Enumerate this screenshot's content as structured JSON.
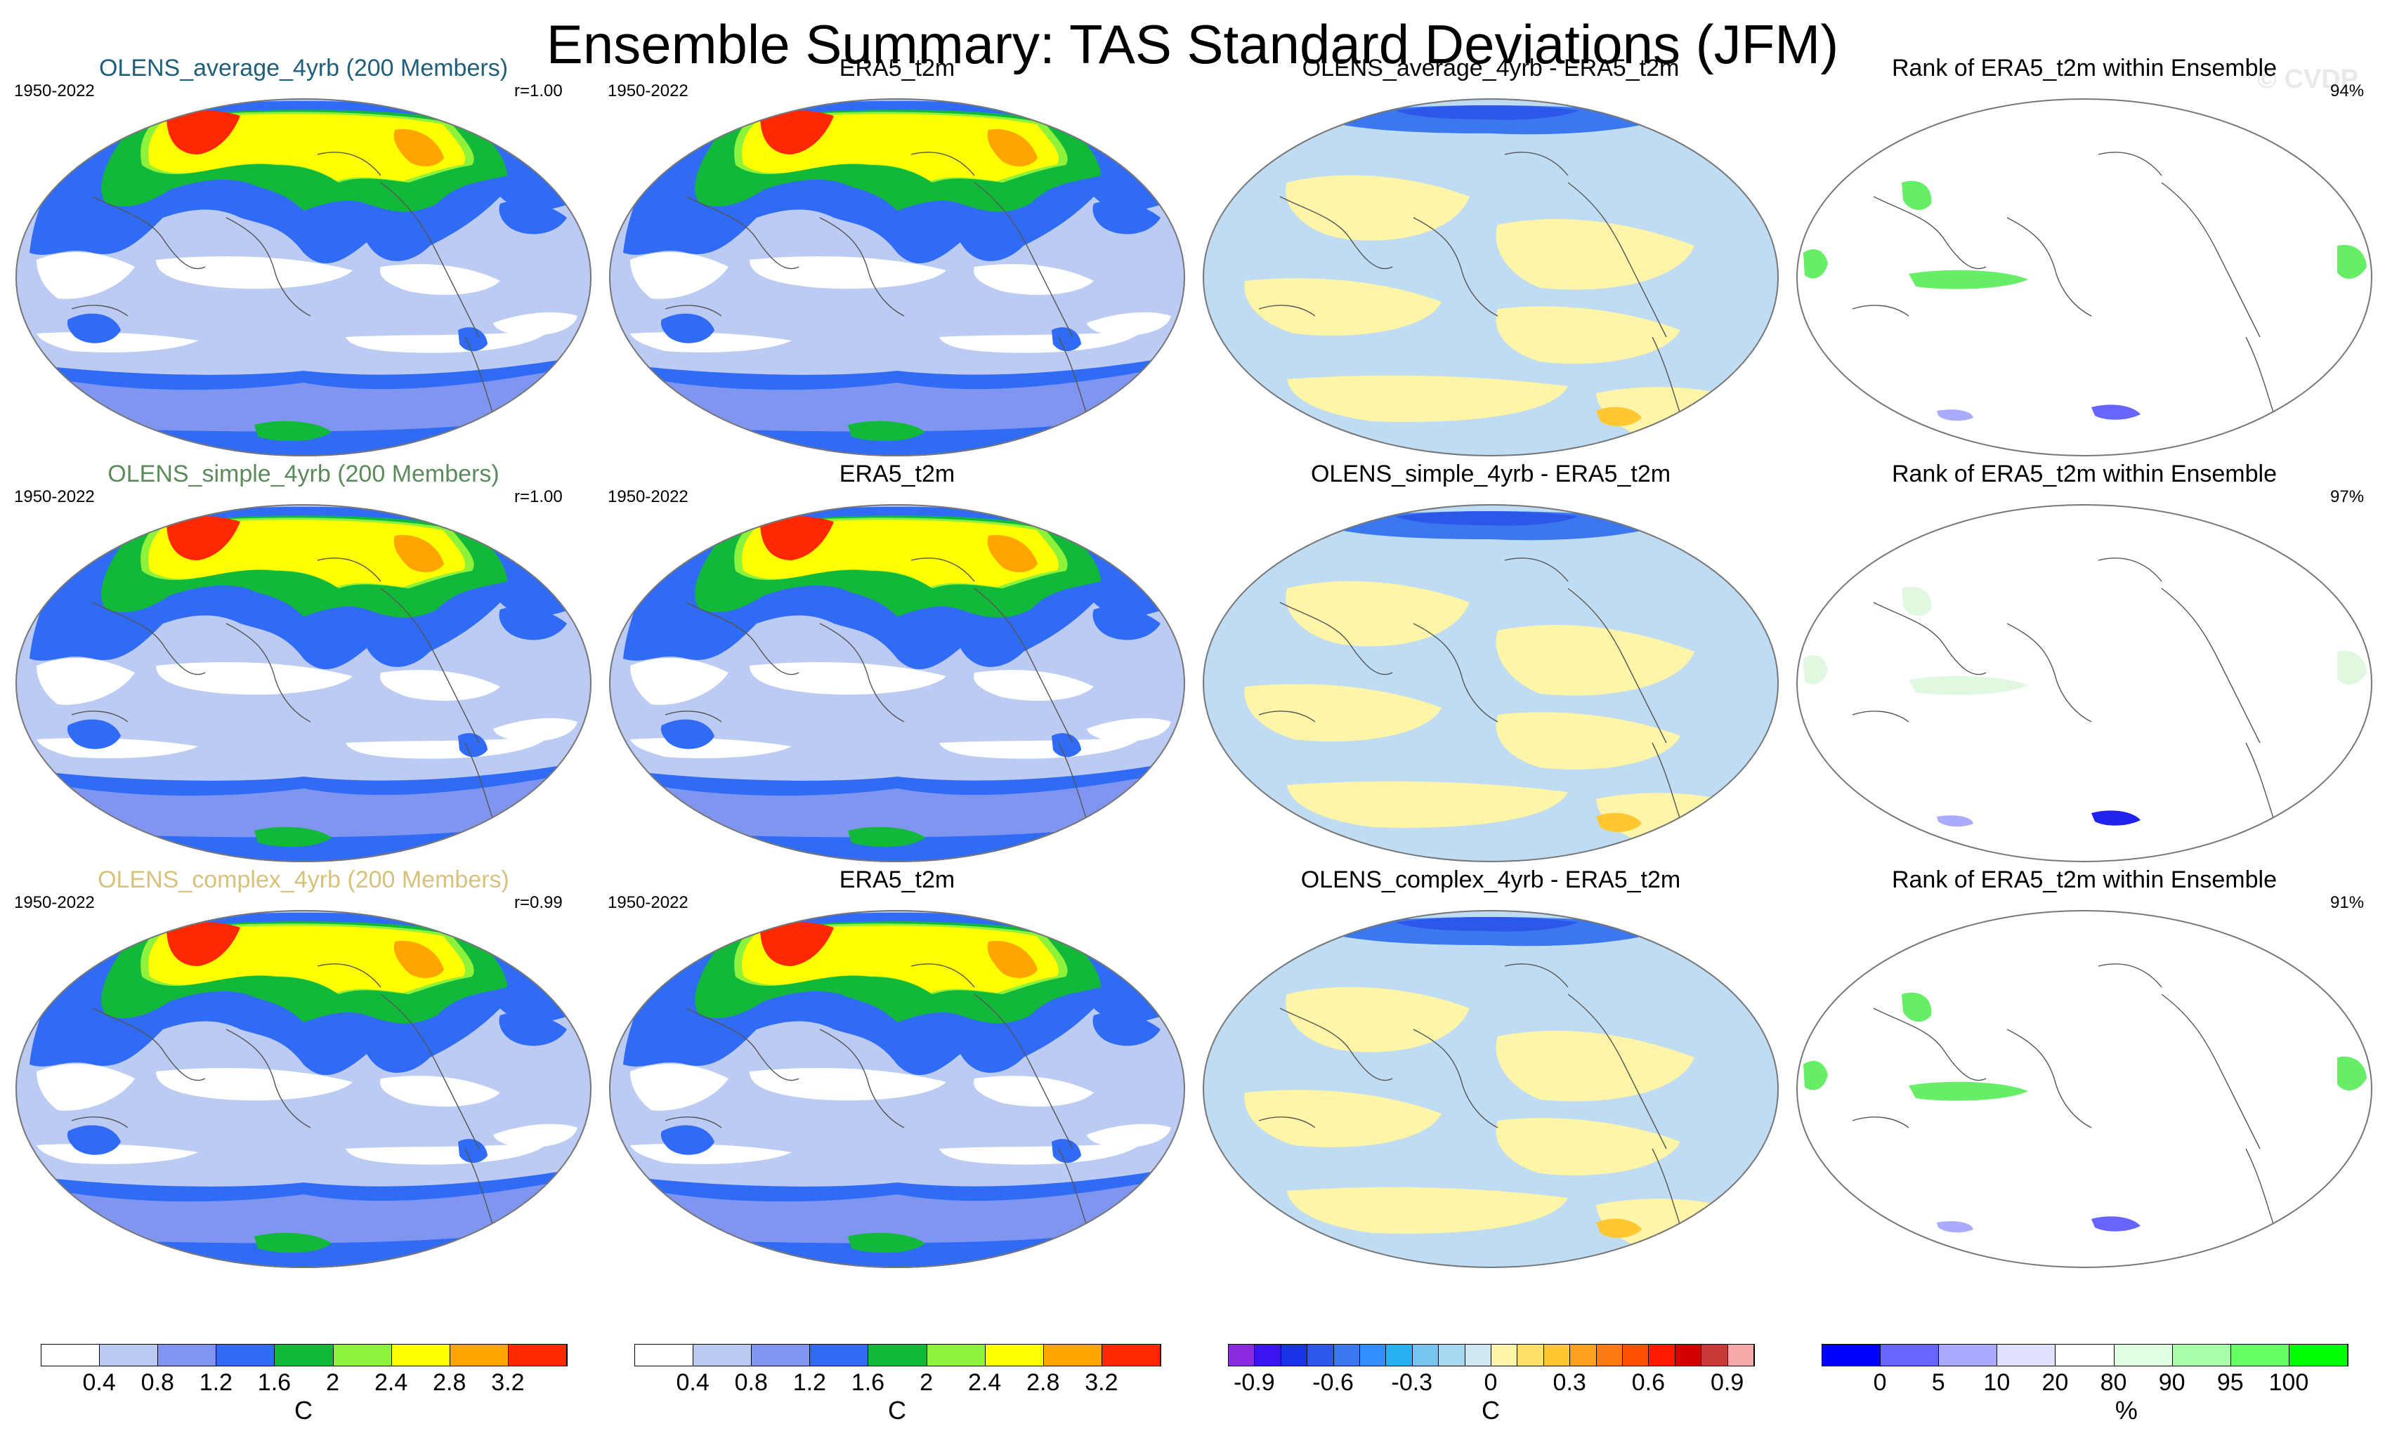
{
  "title": "Ensemble Summary: TAS Standard Deviations (JFM)",
  "watermark": "© CVDP",
  "rows": [
    {
      "model_title": "OLENS_average_4yrb (200 Members)",
      "model_title_color": "#1f5f7a",
      "period_left": "1950-2022",
      "pattern_corr": "r=1.00",
      "obs_title": "ERA5_t2m",
      "obs_period": "1950-2022",
      "diff_title": "OLENS_average_4yrb - ERA5_t2m",
      "rank_title": "Rank of ERA5_t2m within Ensemble",
      "rank_pct": "94%"
    },
    {
      "model_title": "OLENS_simple_4yrb (200 Members)",
      "model_title_color": "#5c8a5c",
      "period_left": "1950-2022",
      "pattern_corr": "r=1.00",
      "obs_title": "ERA5_t2m",
      "obs_period": "1950-2022",
      "diff_title": "OLENS_simple_4yrb - ERA5_t2m",
      "rank_title": "Rank of ERA5_t2m within Ensemble",
      "rank_pct": "97%"
    },
    {
      "model_title": "OLENS_complex_4yrb (200 Members)",
      "model_title_color": "#d6c27a",
      "period_left": "1950-2022",
      "pattern_corr": "r=0.99",
      "obs_title": "ERA5_t2m",
      "obs_period": "1950-2022",
      "diff_title": "OLENS_complex_4yrb - ERA5_t2m",
      "rank_title": "Rank of ERA5_t2m within Ensemble",
      "rank_pct": "91%"
    }
  ],
  "chart_data": [
    {
      "type": "heatmap",
      "name": "tas-stddev-colorbar",
      "unit": "C",
      "colors": [
        "#ffffff",
        "#bccbf4",
        "#7f95f0",
        "#2f6bf5",
        "#12b83a",
        "#8ff23a",
        "#ffff00",
        "#ffa500",
        "#ff2800"
      ],
      "tick_labels": [
        "0.4",
        "0.8",
        "1.2",
        "1.6",
        "2",
        "2.4",
        "2.8",
        "3.2"
      ],
      "levels": [
        0.4,
        0.8,
        1.2,
        1.6,
        2.0,
        2.4,
        2.8,
        3.2
      ]
    },
    {
      "type": "heatmap",
      "name": "difference-colorbar",
      "unit": "C",
      "colors": [
        "#8a2be2",
        "#3c14f0",
        "#1a33e6",
        "#2c57e8",
        "#3b78f0",
        "#2f8fff",
        "#27b0f4",
        "#78c6f0",
        "#a8d8f0",
        "#d0e8f4",
        "#fff5a8",
        "#ffe066",
        "#ffc830",
        "#ffa020",
        "#ff7a10",
        "#ff5000",
        "#ff1a00",
        "#d40000",
        "#c83a3a",
        "#f4a8a8"
      ],
      "tick_labels": [
        "-0.9",
        "-0.6",
        "-0.3",
        "0",
        "0.3",
        "0.6",
        "0.9"
      ],
      "levels": [
        -0.9,
        -0.6,
        -0.3,
        0,
        0.3,
        0.6,
        0.9
      ]
    },
    {
      "type": "heatmap",
      "name": "rank-colorbar",
      "unit": "%",
      "colors": [
        "#0000ff",
        "#6666ff",
        "#aaaaff",
        "#e0e0ff",
        "#ffffff",
        "#e0ffe0",
        "#aaffaa",
        "#66ff66",
        "#00ff00"
      ],
      "tick_labels": [
        "0",
        "5",
        "10",
        "20",
        "80",
        "90",
        "95",
        "100"
      ],
      "levels": [
        0,
        5,
        10,
        20,
        80,
        90,
        95,
        100
      ]
    }
  ]
}
